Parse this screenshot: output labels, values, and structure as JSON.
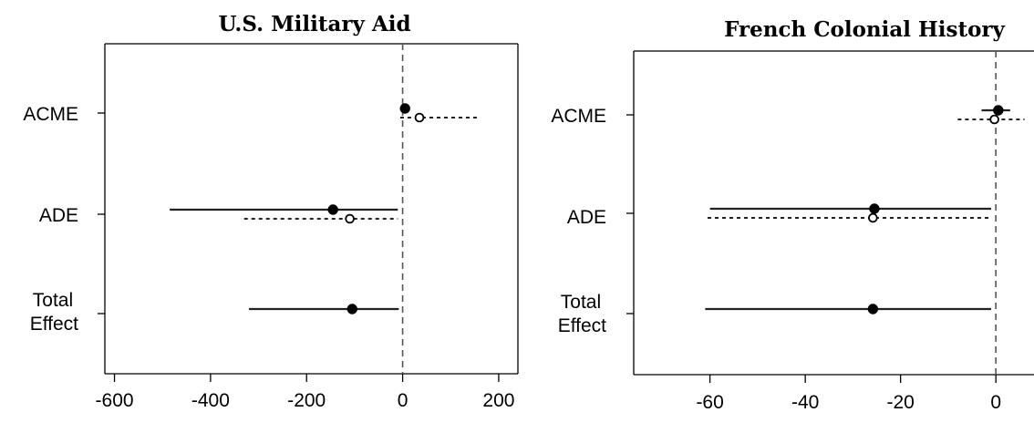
{
  "chart_data": [
    {
      "type": "dot-interval",
      "title": "U.S. Military Aid",
      "categories": [
        "ACME",
        "ADE",
        "Total Effect"
      ],
      "xlim": [
        -620,
        240
      ],
      "xticks": [
        -600,
        -400,
        -200,
        0,
        200
      ],
      "reference_line": 0,
      "series": [
        {
          "style": "solid-filled",
          "points": [
            {
              "category": "ACME",
              "estimate": 5,
              "lower": null,
              "upper": null
            },
            {
              "category": "ADE",
              "estimate": -145,
              "lower": -485,
              "upper": -10
            },
            {
              "category": "Total Effect",
              "estimate": -105,
              "lower": -320,
              "upper": -8
            }
          ]
        },
        {
          "style": "dotted-open",
          "points": [
            {
              "category": "ACME",
              "estimate": 35,
              "lower": -5,
              "upper": 160
            },
            {
              "category": "ADE",
              "estimate": -110,
              "lower": -330,
              "upper": -10
            }
          ]
        }
      ]
    },
    {
      "type": "dot-interval",
      "title": "French Colonial History",
      "categories": [
        "ACME",
        "ADE",
        "Total Effect"
      ],
      "xlim": [
        -76,
        8
      ],
      "xticks": [
        -60,
        -40,
        -20,
        0
      ],
      "reference_line": 0,
      "series": [
        {
          "style": "solid-filled",
          "points": [
            {
              "category": "ACME",
              "estimate": 0.5,
              "lower": -3,
              "upper": 3
            },
            {
              "category": "ADE",
              "estimate": -25.5,
              "lower": -60,
              "upper": -1
            },
            {
              "category": "Total Effect",
              "estimate": -25.8,
              "lower": -61,
              "upper": -1
            }
          ]
        },
        {
          "style": "dotted-open",
          "points": [
            {
              "category": "ACME",
              "estimate": -0.3,
              "lower": -8,
              "upper": 6
            },
            {
              "category": "ADE",
              "estimate": -25.8,
              "lower": -60.5,
              "upper": -1
            }
          ]
        }
      ]
    }
  ]
}
